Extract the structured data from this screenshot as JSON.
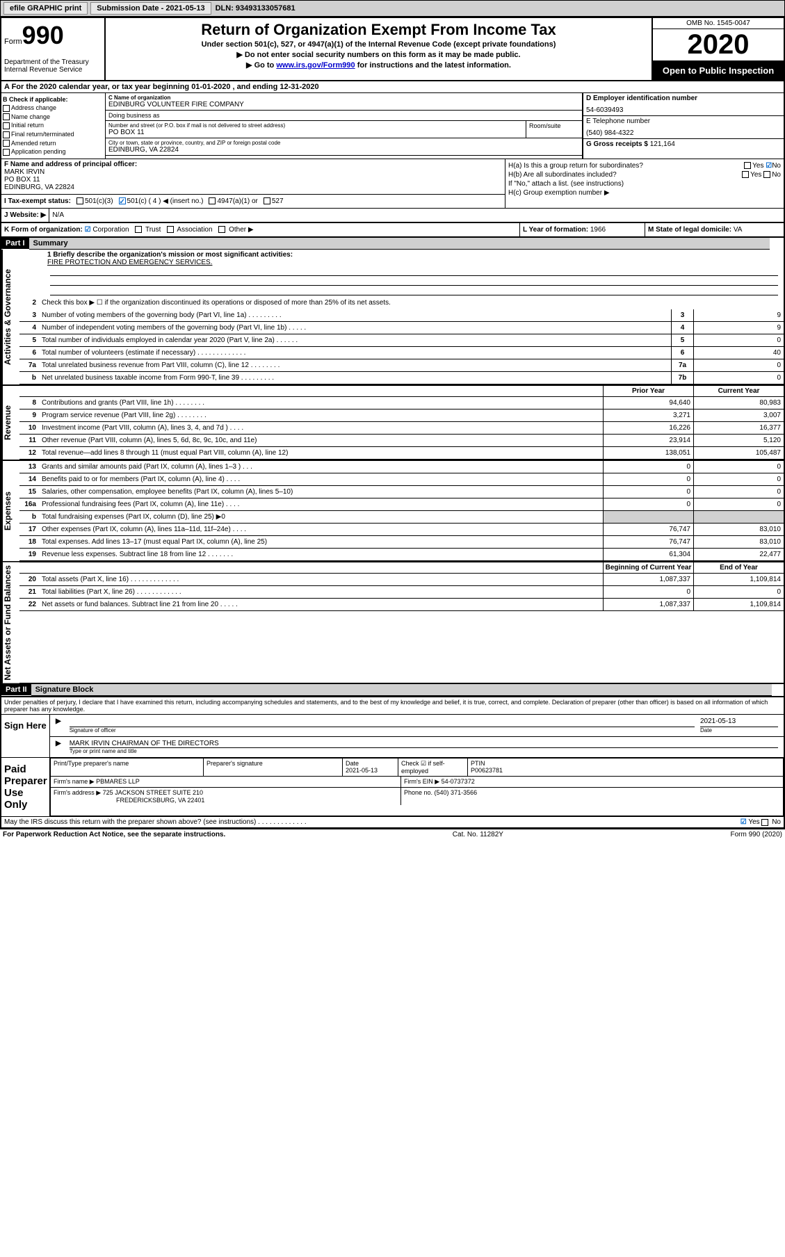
{
  "topbar": {
    "efile": "efile GRAPHIC print",
    "submission_label": "Submission Date - 2021-05-13",
    "dln": "DLN: 93493133057681"
  },
  "header": {
    "form_word": "Form",
    "form_num": "990",
    "dept": "Department of the Treasury\nInternal Revenue Service",
    "title": "Return of Organization Exempt From Income Tax",
    "subtitle": "Under section 501(c), 527, or 4947(a)(1) of the Internal Revenue Code (except private foundations)",
    "note1": "▶ Do not enter social security numbers on this form as it may be made public.",
    "note2_prefix": "▶ Go to ",
    "note2_link": "www.irs.gov/Form990",
    "note2_suffix": " for instructions and the latest information.",
    "omb": "OMB No. 1545-0047",
    "year": "2020",
    "open": "Open to Public Inspection"
  },
  "row_a": "A For the 2020 calendar year, or tax year beginning 01-01-2020   , and ending 12-31-2020",
  "col_b": {
    "title": "B Check if applicable:",
    "opts": [
      "Address change",
      "Name change",
      "Initial return",
      "Final return/terminated",
      "Amended return",
      "Application pending"
    ]
  },
  "org": {
    "name_lbl": "C Name of organization",
    "name": "EDINBURG VOLUNTEER FIRE COMPANY",
    "dba_lbl": "Doing business as",
    "addr_lbl": "Number and street (or P.O. box if mail is not delivered to street address)",
    "suite_lbl": "Room/suite",
    "addr": "PO BOX 11",
    "city_lbl": "City or town, state or province, country, and ZIP or foreign postal code",
    "city": "EDINBURG, VA  22824"
  },
  "right": {
    "d_lbl": "D Employer identification number",
    "d_val": "54-6039493",
    "e_lbl": "E Telephone number",
    "e_val": "(540) 984-4322",
    "g_lbl": "G Gross receipts $ ",
    "g_val": "121,164"
  },
  "f": {
    "lbl": "F  Name and address of principal officer:",
    "name": "MARK IRVIN",
    "addr1": "PO BOX 11",
    "addr2": "EDINBURG, VA  22824"
  },
  "h": {
    "ha": "H(a)  Is this a group return for subordinates?",
    "hb": "H(b)  Are all subordinates included?",
    "hb_note": "If \"No,\" attach a list. (see instructions)",
    "hc": "H(c)  Group exemption number ▶",
    "yes": "Yes",
    "no": "No"
  },
  "row_i": {
    "lbl": "I  Tax-exempt status:",
    "o1": "501(c)(3)",
    "o2": "501(c) ( 4 ) ◀ (insert no.)",
    "o3": "4947(a)(1) or",
    "o4": "527"
  },
  "row_j": {
    "lbl": "J  Website: ▶",
    "val": "N/A"
  },
  "row_k": {
    "lbl": "K Form of organization:",
    "o1": "Corporation",
    "o2": "Trust",
    "o3": "Association",
    "o4": "Other ▶"
  },
  "row_l": {
    "lbl": "L Year of formation: ",
    "val": "1966"
  },
  "row_m": {
    "lbl": "M State of legal domicile: ",
    "val": "VA"
  },
  "part1": {
    "hdr": "Part I",
    "title": "Summary"
  },
  "summary": {
    "line1_lbl": "1  Briefly describe the organization's mission or most significant activities:",
    "line1_val": "FIRE PROTECTION AND EMERGENCY SERVICES.",
    "line2": "Check this box ▶ ☐  if the organization discontinued its operations or disposed of more than 25% of its net assets.",
    "lines": [
      {
        "n": "3",
        "d": "Number of voting members of the governing body (Part VI, line 1a)   .    .    .    .    .    .    .    .    .",
        "cn": "3",
        "v": "9"
      },
      {
        "n": "4",
        "d": "Number of independent voting members of the governing body (Part VI, line 1b)   .    .    .    .    .",
        "cn": "4",
        "v": "9"
      },
      {
        "n": "5",
        "d": "Total number of individuals employed in calendar year 2020 (Part V, line 2a)   .    .    .    .    .    .",
        "cn": "5",
        "v": "0"
      },
      {
        "n": "6",
        "d": "Total number of volunteers (estimate if necessary)   .    .    .    .    .    .    .    .    .    .    .    .    .",
        "cn": "6",
        "v": "40"
      },
      {
        "n": "7a",
        "d": "Total unrelated business revenue from Part VIII, column (C), line 12   .    .    .    .    .    .    .    .",
        "cn": "7a",
        "v": "0"
      },
      {
        "n": "b",
        "d": "Net unrelated business taxable income from Form 990-T, line 39  .    .    .    .    .    .    .    .    .",
        "cn": "7b",
        "v": "0"
      }
    ]
  },
  "side_labels": {
    "ag": "Activities & Governance",
    "rev": "Revenue",
    "exp": "Expenses",
    "na": "Net Assets or Fund Balances"
  },
  "rev_head": {
    "prior": "Prior Year",
    "current": "Current Year"
  },
  "revenue": [
    {
      "n": "8",
      "d": "Contributions and grants (Part VIII, line 1h)   .    .    .    .    .    .    .    .",
      "p": "94,640",
      "c": "80,983"
    },
    {
      "n": "9",
      "d": "Program service revenue (Part VIII, line 2g)   .    .    .    .    .    .    .    .",
      "p": "3,271",
      "c": "3,007"
    },
    {
      "n": "10",
      "d": "Investment income (Part VIII, column (A), lines 3, 4, and 7d )   .    .    .    .",
      "p": "16,226",
      "c": "16,377"
    },
    {
      "n": "11",
      "d": "Other revenue (Part VIII, column (A), lines 5, 6d, 8c, 9c, 10c, and 11e)",
      "p": "23,914",
      "c": "5,120"
    },
    {
      "n": "12",
      "d": "Total revenue—add lines 8 through 11 (must equal Part VIII, column (A), line 12)",
      "p": "138,051",
      "c": "105,487"
    }
  ],
  "expenses": [
    {
      "n": "13",
      "d": "Grants and similar amounts paid (Part IX, column (A), lines 1–3 )   .    .    .",
      "p": "0",
      "c": "0"
    },
    {
      "n": "14",
      "d": "Benefits paid to or for members (Part IX, column (A), line 4)   .    .    .    .",
      "p": "0",
      "c": "0"
    },
    {
      "n": "15",
      "d": "Salaries, other compensation, employee benefits (Part IX, column (A), lines 5–10)",
      "p": "0",
      "c": "0"
    },
    {
      "n": "16a",
      "d": "Professional fundraising fees (Part IX, column (A), line 11e)   .    .    .    .",
      "p": "0",
      "c": "0"
    },
    {
      "n": "b",
      "d": "Total fundraising expenses (Part IX, column (D), line 25) ▶0",
      "p": "",
      "c": "",
      "shade": true
    },
    {
      "n": "17",
      "d": "Other expenses (Part IX, column (A), lines 11a–11d, 11f–24e)   .    .    .    .",
      "p": "76,747",
      "c": "83,010"
    },
    {
      "n": "18",
      "d": "Total expenses. Add lines 13–17 (must equal Part IX, column (A), line 25)",
      "p": "76,747",
      "c": "83,010"
    },
    {
      "n": "19",
      "d": "Revenue less expenses. Subtract line 18 from line 12   .    .    .    .    .    .    .",
      "p": "61,304",
      "c": "22,477"
    }
  ],
  "na_head": {
    "prior": "Beginning of Current Year",
    "current": "End of Year"
  },
  "netassets": [
    {
      "n": "20",
      "d": "Total assets (Part X, line 16)   .    .    .    .    .    .    .    .    .    .    .    .    .",
      "p": "1,087,337",
      "c": "1,109,814"
    },
    {
      "n": "21",
      "d": "Total liabilities (Part X, line 26)   .    .    .    .    .    .    .    .    .    .    .    .",
      "p": "0",
      "c": "0"
    },
    {
      "n": "22",
      "d": "Net assets or fund balances. Subtract line 21 from line 20   .    .    .    .    .",
      "p": "1,087,337",
      "c": "1,109,814"
    }
  ],
  "part2": {
    "hdr": "Part II",
    "title": "Signature Block"
  },
  "sig": {
    "text": "Under penalties of perjury, I declare that I have examined this return, including accompanying schedules and statements, and to the best of my knowledge and belief, it is true, correct, and complete. Declaration of preparer (other than officer) is based on all information of which preparer has any knowledge.",
    "here": "Sign Here",
    "officer_sig": "Signature of officer",
    "date": "2021-05-13",
    "date_lbl": "Date",
    "officer_name": "MARK IRVIN  CHAIRMAN OF THE DIRECTORS",
    "type_lbl": "Type or print name and title"
  },
  "prep": {
    "left": "Paid Preparer Use Only",
    "h1": "Print/Type preparer's name",
    "h2": "Preparer's signature",
    "h3": "Date",
    "h3v": "2021-05-13",
    "h4": "Check ☑ if self-employed",
    "h5": "PTIN",
    "h5v": "P00623781",
    "firm_lbl": "Firm's name    ▶",
    "firm": "PBMARES LLP",
    "ein_lbl": "Firm's EIN ▶",
    "ein": "54-0737372",
    "addr_lbl": "Firm's address ▶",
    "addr1": "725 JACKSON STREET SUITE 210",
    "addr2": "FREDERICKSBURG, VA  22401",
    "phone_lbl": "Phone no. ",
    "phone": "(540) 371-3566"
  },
  "discuss": "May the IRS discuss this return with the preparer shown above? (see instructions)   .    .    .    .    .    .    .    .    .    .    .    .    .",
  "footer": {
    "left": "For Paperwork Reduction Act Notice, see the separate instructions.",
    "mid": "Cat. No. 11282Y",
    "right": "Form 990 (2020)"
  }
}
